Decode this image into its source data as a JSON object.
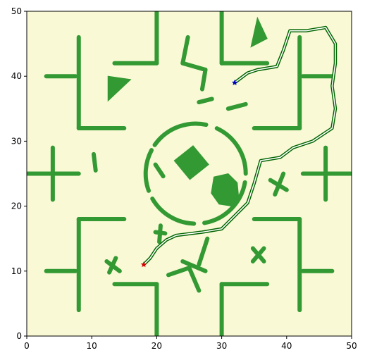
{
  "chart_data": {
    "type": "scatter",
    "title": "",
    "xlabel": "",
    "ylabel": "",
    "xlim": [
      0,
      50
    ],
    "ylim": [
      0,
      50
    ],
    "x_ticks": [
      "0",
      "10",
      "20",
      "30",
      "40",
      "50"
    ],
    "y_ticks": [
      "0",
      "10",
      "20",
      "30",
      "40",
      "50"
    ],
    "grid": false,
    "legend": "none",
    "colors": {
      "background": "#f9f9d5",
      "obstacle": "#339933",
      "path_outer": "#006400",
      "path_inner": "#ffffff",
      "start": "#0000cc",
      "goal": "#dd0000"
    },
    "obstacles": {
      "segments": [
        [
          [
            8,
            46
          ],
          [
            8,
            32
          ]
        ],
        [
          [
            8,
            32
          ],
          [
            15,
            32
          ]
        ],
        [
          [
            3,
            40
          ],
          [
            7.5,
            40
          ]
        ],
        [
          [
            13.5,
            42
          ],
          [
            20,
            42
          ]
        ],
        [
          [
            20,
            42
          ],
          [
            20,
            50
          ]
        ],
        [
          [
            30,
            50
          ],
          [
            30,
            42
          ]
        ],
        [
          [
            30,
            42
          ],
          [
            37,
            42
          ]
        ],
        [
          [
            42,
            46
          ],
          [
            42,
            32
          ]
        ],
        [
          [
            42,
            32
          ],
          [
            35,
            32
          ]
        ],
        [
          [
            42.5,
            40
          ],
          [
            47,
            40
          ]
        ],
        [
          [
            0,
            25
          ],
          [
            8,
            25
          ]
        ],
        [
          [
            4,
            29
          ],
          [
            4,
            21
          ]
        ],
        [
          [
            42.5,
            25
          ],
          [
            50,
            25
          ]
        ],
        [
          [
            46,
            29
          ],
          [
            46,
            21
          ]
        ],
        [
          [
            8,
            4
          ],
          [
            8,
            18
          ]
        ],
        [
          [
            8,
            18
          ],
          [
            15,
            18
          ]
        ],
        [
          [
            3,
            10
          ],
          [
            7.5,
            10
          ]
        ],
        [
          [
            13.5,
            8
          ],
          [
            20,
            8
          ]
        ],
        [
          [
            20,
            8
          ],
          [
            20,
            0
          ]
        ],
        [
          [
            30,
            0
          ],
          [
            30,
            8
          ]
        ],
        [
          [
            30,
            8
          ],
          [
            37,
            8
          ]
        ],
        [
          [
            42,
            4
          ],
          [
            42,
            18
          ]
        ],
        [
          [
            42,
            18
          ],
          [
            35,
            18
          ]
        ],
        [
          [
            42.5,
            10
          ],
          [
            47,
            10
          ]
        ],
        [
          [
            24.8,
            46
          ],
          [
            24,
            42
          ]
        ],
        [
          [
            24,
            42
          ],
          [
            27.5,
            41
          ]
        ],
        [
          [
            27.5,
            41
          ],
          [
            27,
            38
          ]
        ],
        [
          [
            26.5,
            36
          ],
          [
            28.5,
            36.5
          ]
        ],
        [
          [
            31,
            35
          ],
          [
            33.7,
            35.7
          ]
        ],
        [
          [
            10.3,
            28
          ],
          [
            10.6,
            25.5
          ]
        ],
        [
          [
            19.8,
            16
          ],
          [
            21.3,
            15.8
          ]
        ],
        [
          [
            20.4,
            14.5
          ],
          [
            20.6,
            17
          ]
        ],
        [
          [
            12.3,
            11.5
          ],
          [
            14.3,
            10
          ]
        ],
        [
          [
            12.7,
            9.8
          ],
          [
            13.7,
            12
          ]
        ],
        [
          [
            34.8,
            13.5
          ],
          [
            36.5,
            11.5
          ]
        ],
        [
          [
            34.8,
            11.5
          ],
          [
            36.5,
            13.5
          ]
        ],
        [
          [
            37.5,
            24
          ],
          [
            40,
            22.5
          ]
        ],
        [
          [
            38.2,
            21.8
          ],
          [
            39.5,
            25
          ]
        ],
        [
          [
            24,
            11.5
          ],
          [
            27.5,
            10
          ]
        ],
        [
          [
            27.8,
            15
          ],
          [
            26.5,
            11
          ]
        ],
        [
          [
            21.8,
            9.4
          ],
          [
            25,
            10.5
          ]
        ],
        [
          [
            25,
            10.5
          ],
          [
            26.5,
            7
          ]
        ],
        [
          [
            19.8,
            26.4
          ],
          [
            21,
            24.6
          ]
        ]
      ],
      "arcs": [
        {
          "cx": 26,
          "cy": 25,
          "r": 7.7,
          "start_deg": 78,
          "end_deg": 145
        },
        {
          "cx": 26,
          "cy": 25,
          "r": 7.7,
          "start_deg": 152,
          "end_deg": 200
        },
        {
          "cx": 26,
          "cy": 25,
          "r": 7.7,
          "start_deg": 210,
          "end_deg": 268
        },
        {
          "cx": 26,
          "cy": 25,
          "r": 7.7,
          "start_deg": 280,
          "end_deg": 350
        },
        {
          "cx": 26,
          "cy": 25,
          "r": 7.7,
          "start_deg": 0,
          "end_deg": 65
        }
      ],
      "polygons": [
        [
          [
            12.5,
            36.2
          ],
          [
            12.5,
            40
          ],
          [
            16,
            39.5
          ]
        ],
        [
          [
            34.5,
            44.5
          ],
          [
            35.5,
            49
          ],
          [
            37,
            45.8
          ]
        ],
        [
          [
            22.7,
            27
          ],
          [
            25.6,
            29.3
          ],
          [
            28,
            26.4
          ],
          [
            25.1,
            24.1
          ]
        ],
        [
          [
            28.4,
            22
          ],
          [
            29.6,
            20.3
          ],
          [
            31.6,
            20
          ],
          [
            32.6,
            21.5
          ],
          [
            32.4,
            23.6
          ],
          [
            31,
            25
          ],
          [
            28.8,
            24.5
          ]
        ]
      ]
    },
    "path": [
      [
        18,
        11
      ],
      [
        19,
        12
      ],
      [
        20,
        13.5
      ],
      [
        21.5,
        14.8
      ],
      [
        23,
        15.5
      ],
      [
        27,
        16
      ],
      [
        30,
        16.5
      ],
      [
        32,
        18.5
      ],
      [
        34,
        20.5
      ],
      [
        35,
        23.5
      ],
      [
        36,
        27
      ],
      [
        39,
        27.5
      ],
      [
        41,
        29
      ],
      [
        44,
        30
      ],
      [
        47,
        32
      ],
      [
        47.5,
        35
      ],
      [
        47,
        38.5
      ],
      [
        47.5,
        42
      ],
      [
        47.5,
        45
      ],
      [
        46,
        47.5
      ],
      [
        43,
        47
      ],
      [
        40.5,
        47
      ],
      [
        39.5,
        44
      ],
      [
        38.5,
        41.5
      ],
      [
        35.5,
        41
      ],
      [
        34,
        40.5
      ],
      [
        32,
        39
      ]
    ],
    "start": {
      "x": 32,
      "y": 39,
      "marker": "star"
    },
    "goal": {
      "x": 18,
      "y": 11,
      "marker": "star"
    }
  }
}
